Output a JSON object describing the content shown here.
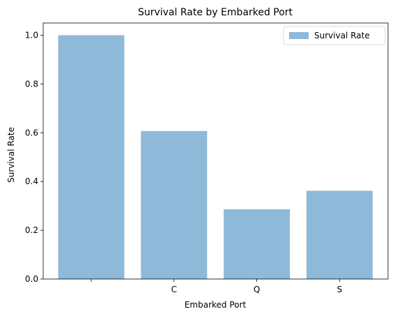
{
  "chart_data": {
    "type": "bar",
    "title": "Survival Rate by Embarked Port",
    "xlabel": "Embarked Port",
    "ylabel": "Survival Rate",
    "categories": [
      "",
      "C",
      "Q",
      "S"
    ],
    "series": [
      {
        "name": "Survival Rate",
        "values": [
          1.0,
          0.607,
          0.286,
          0.362
        ],
        "color": "#8fb9d8"
      }
    ],
    "ylim": [
      0,
      1.05
    ],
    "yticks": [
      "0.0",
      "0.2",
      "0.4",
      "0.6",
      "0.8",
      "1.0"
    ],
    "grid": false,
    "legend_position": "top-right"
  }
}
